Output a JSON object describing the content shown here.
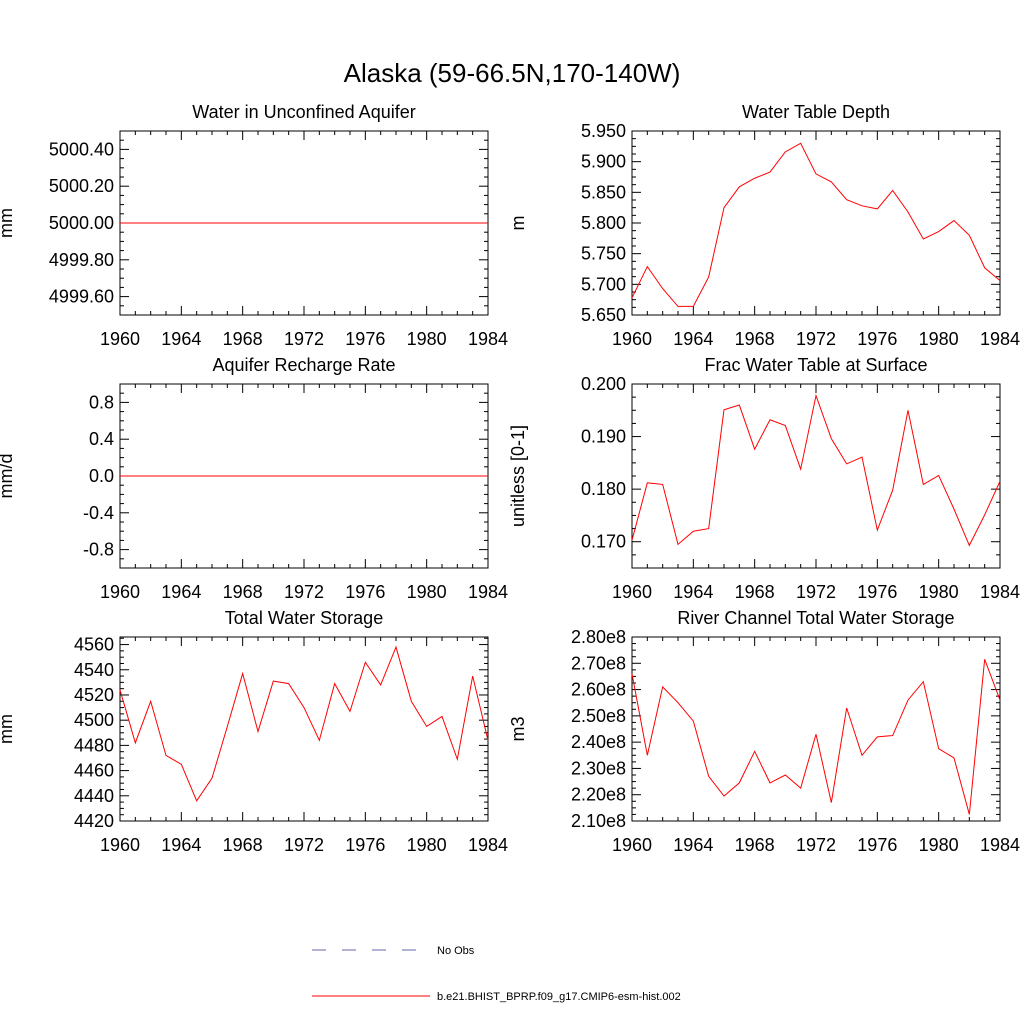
{
  "figure": {
    "title": "Alaska (59-66.5N,170-140W)"
  },
  "legend": {
    "entries": [
      {
        "label": "No Obs",
        "color": "#6666aa",
        "style": "dashed"
      },
      {
        "label": "b.e21.BHIST_BPRP.f09_g17.CMIP6-esm-hist.002",
        "color": "#ff0000",
        "style": "solid"
      }
    ]
  },
  "chart_data": [
    {
      "type": "line",
      "title": "Water in Unconfined Aquifer",
      "ylabel": "mm",
      "xlim": [
        1960,
        1984
      ],
      "ylim": [
        4999.5,
        5000.5
      ],
      "x_ticks": [
        1960,
        1964,
        1968,
        1972,
        1976,
        1980,
        1984
      ],
      "y_ticks": [
        4999.6,
        4999.8,
        5000.0,
        5000.2,
        5000.4
      ],
      "y_tick_labels": [
        "4999.60",
        "4999.80",
        "5000.00",
        "5000.20",
        "5000.40"
      ],
      "x": [
        1960,
        1961,
        1962,
        1963,
        1964,
        1965,
        1966,
        1967,
        1968,
        1969,
        1970,
        1971,
        1972,
        1973,
        1974,
        1975,
        1976,
        1977,
        1978,
        1979,
        1980,
        1981,
        1982,
        1983,
        1984
      ],
      "series": [
        {
          "color": "#ff0000",
          "values": [
            5000,
            5000,
            5000,
            5000,
            5000,
            5000,
            5000,
            5000,
            5000,
            5000,
            5000,
            5000,
            5000,
            5000,
            5000,
            5000,
            5000,
            5000,
            5000,
            5000,
            5000,
            5000,
            5000,
            5000,
            5000
          ]
        }
      ]
    },
    {
      "type": "line",
      "title": "Water Table Depth",
      "ylabel": "m",
      "xlim": [
        1960,
        1984
      ],
      "ylim": [
        5.65,
        5.95
      ],
      "x_ticks": [
        1960,
        1964,
        1968,
        1972,
        1976,
        1980,
        1984
      ],
      "y_ticks": [
        5.65,
        5.7,
        5.75,
        5.8,
        5.85,
        5.9,
        5.95
      ],
      "y_tick_labels": [
        "5.650",
        "5.700",
        "5.750",
        "5.800",
        "5.850",
        "5.900",
        "5.950"
      ],
      "x": [
        1960,
        1961,
        1962,
        1963,
        1964,
        1965,
        1966,
        1967,
        1968,
        1969,
        1970,
        1971,
        1972,
        1973,
        1974,
        1975,
        1976,
        1977,
        1978,
        1979,
        1980,
        1981,
        1982,
        1983,
        1984
      ],
      "series": [
        {
          "color": "#ff0000",
          "values": [
            5.678,
            5.729,
            5.693,
            5.664,
            5.664,
            5.712,
            5.825,
            5.859,
            5.873,
            5.883,
            5.916,
            5.93,
            5.88,
            5.867,
            5.838,
            5.828,
            5.823,
            5.853,
            5.818,
            5.774,
            5.786,
            5.804,
            5.78,
            5.727,
            5.706
          ]
        }
      ]
    },
    {
      "type": "line",
      "title": "Aquifer Recharge Rate",
      "ylabel": "mm/d",
      "xlim": [
        1960,
        1984
      ],
      "ylim": [
        -1.0,
        1.0
      ],
      "x_ticks": [
        1960,
        1964,
        1968,
        1972,
        1976,
        1980,
        1984
      ],
      "y_ticks": [
        -0.8,
        -0.4,
        0.0,
        0.4,
        0.8
      ],
      "y_tick_labels": [
        "-0.8",
        "-0.4",
        "0.0",
        "0.4",
        "0.8"
      ],
      "x": [
        1960,
        1961,
        1962,
        1963,
        1964,
        1965,
        1966,
        1967,
        1968,
        1969,
        1970,
        1971,
        1972,
        1973,
        1974,
        1975,
        1976,
        1977,
        1978,
        1979,
        1980,
        1981,
        1982,
        1983,
        1984
      ],
      "series": [
        {
          "color": "#ff0000",
          "values": [
            0,
            0,
            0,
            0,
            0,
            0,
            0,
            0,
            0,
            0,
            0,
            0,
            0,
            0,
            0,
            0,
            0,
            0,
            0,
            0,
            0,
            0,
            0,
            0,
            0
          ]
        }
      ]
    },
    {
      "type": "line",
      "title": "Frac Water Table at Surface",
      "ylabel": "unitless [0-1]",
      "xlim": [
        1960,
        1984
      ],
      "ylim": [
        0.165,
        0.2
      ],
      "x_ticks": [
        1960,
        1964,
        1968,
        1972,
        1976,
        1980,
        1984
      ],
      "y_ticks": [
        0.17,
        0.18,
        0.19,
        0.2
      ],
      "y_tick_labels": [
        "0.170",
        "0.180",
        "0.190",
        "0.200"
      ],
      "x": [
        1960,
        1961,
        1962,
        1963,
        1964,
        1965,
        1966,
        1967,
        1968,
        1969,
        1970,
        1971,
        1972,
        1973,
        1974,
        1975,
        1976,
        1977,
        1978,
        1979,
        1980,
        1981,
        1982,
        1983,
        1984
      ],
      "series": [
        {
          "color": "#ff0000",
          "values": [
            0.1703,
            0.1812,
            0.1809,
            0.1695,
            0.172,
            0.1725,
            0.1951,
            0.196,
            0.1876,
            0.1932,
            0.1921,
            0.1838,
            0.1978,
            0.1896,
            0.1848,
            0.1861,
            0.1722,
            0.1798,
            0.195,
            0.1809,
            0.1826,
            0.1762,
            0.1693,
            0.1751,
            0.1815
          ]
        }
      ]
    },
    {
      "type": "line",
      "title": "Total Water Storage",
      "ylabel": "mm",
      "xlim": [
        1960,
        1984
      ],
      "ylim": [
        4420,
        4566
      ],
      "x_ticks": [
        1960,
        1964,
        1968,
        1972,
        1976,
        1980,
        1984
      ],
      "y_ticks": [
        4420,
        4440,
        4460,
        4480,
        4500,
        4520,
        4540,
        4560
      ],
      "y_tick_labels": [
        "4420",
        "4440",
        "4460",
        "4480",
        "4500",
        "4520",
        "4540",
        "4560"
      ],
      "x": [
        1960,
        1961,
        1962,
        1963,
        1964,
        1965,
        1966,
        1967,
        1968,
        1969,
        1970,
        1971,
        1972,
        1973,
        1974,
        1975,
        1976,
        1977,
        1978,
        1979,
        1980,
        1981,
        1982,
        1983,
        1984
      ],
      "series": [
        {
          "color": "#ff0000",
          "values": [
            4524,
            4482,
            4515,
            4472,
            4465,
            4436,
            4454,
            4495,
            4537,
            4491,
            4531,
            4529,
            4510,
            4484,
            4529,
            4507,
            4546,
            4528,
            4558,
            4515,
            4495,
            4503,
            4469,
            4535,
            4484
          ]
        }
      ]
    },
    {
      "type": "line",
      "title": "River Channel Total Water Storage",
      "ylabel": "m3",
      "xlim": [
        1960,
        1984
      ],
      "ylim": [
        210000000,
        280000000
      ],
      "x_ticks": [
        1960,
        1964,
        1968,
        1972,
        1976,
        1980,
        1984
      ],
      "y_ticks": [
        210000000,
        220000000,
        230000000,
        240000000,
        250000000,
        260000000,
        270000000,
        280000000
      ],
      "y_tick_labels": [
        "2.10e8",
        "2.20e8",
        "2.30e8",
        "2.40e8",
        "2.50e8",
        "2.60e8",
        "2.70e8",
        "2.80e8"
      ],
      "x": [
        1960,
        1961,
        1962,
        1963,
        1964,
        1965,
        1966,
        1967,
        1968,
        1969,
        1970,
        1971,
        1972,
        1973,
        1974,
        1975,
        1976,
        1977,
        1978,
        1979,
        1980,
        1981,
        1982,
        1983,
        1984
      ],
      "series": [
        {
          "color": "#ff0000",
          "values": [
            266000000,
            235000000,
            261000000,
            255000000,
            248000000,
            227000000,
            219500000,
            224500000,
            236500000,
            224500000,
            227500000,
            222500000,
            243000000,
            217000000,
            253000000,
            235000000,
            242000000,
            242500000,
            256000000,
            263000000,
            237500000,
            234000000,
            212500000,
            271500000,
            256000000
          ]
        }
      ]
    }
  ]
}
